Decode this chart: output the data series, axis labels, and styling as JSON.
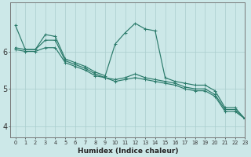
{
  "xlabel": "Humidex (Indice chaleur)",
  "ylabel": "",
  "bg_color": "#cce8e8",
  "line_color": "#2a7a6a",
  "grid_color": "#aacece",
  "axis_color": "#777777",
  "xlim": [
    -0.5,
    23
  ],
  "ylim": [
    3.7,
    7.3
  ],
  "yticks": [
    4,
    5,
    6
  ],
  "xtick_labels": [
    "0",
    "1",
    "2",
    "3",
    "4",
    "5",
    "6",
    "7",
    "8",
    "9",
    "10",
    "11",
    "12",
    "13",
    "14",
    "15",
    "16",
    "17",
    "18",
    "19",
    "20",
    "21",
    "22",
    "23"
  ],
  "lines": [
    {
      "x": [
        0,
        1,
        2,
        3,
        4,
        5,
        6,
        7,
        8,
        9,
        10,
        11,
        12,
        13,
        14,
        15,
        16,
        17,
        18,
        19,
        20,
        21,
        22,
        23
      ],
      "y": [
        6.7,
        6.05,
        6.05,
        6.45,
        6.4,
        5.8,
        5.7,
        5.6,
        5.45,
        5.35,
        6.2,
        6.5,
        6.75,
        6.6,
        6.55,
        5.3,
        5.2,
        5.15,
        5.1,
        5.1,
        4.95,
        4.5,
        4.5,
        4.2
      ]
    },
    {
      "x": [
        0,
        1,
        2,
        3,
        4,
        5,
        6,
        7,
        8,
        9,
        10,
        11,
        12,
        13,
        14,
        15,
        16,
        17,
        18,
        19,
        20,
        21,
        22,
        23
      ],
      "y": [
        6.1,
        6.05,
        6.05,
        6.3,
        6.3,
        5.75,
        5.65,
        5.55,
        5.4,
        5.3,
        5.25,
        5.3,
        5.4,
        5.3,
        5.25,
        5.2,
        5.15,
        5.05,
        5.0,
        5.0,
        4.85,
        4.45,
        4.45,
        4.2
      ]
    },
    {
      "x": [
        0,
        1,
        2,
        3,
        4,
        5,
        6,
        7,
        8,
        9,
        10,
        11,
        12,
        13,
        14,
        15,
        16,
        17,
        18,
        19,
        20,
        21,
        22,
        23
      ],
      "y": [
        6.05,
        6.0,
        6.0,
        6.1,
        6.1,
        5.7,
        5.6,
        5.5,
        5.35,
        5.3,
        5.2,
        5.25,
        5.3,
        5.25,
        5.2,
        5.15,
        5.1,
        5.0,
        4.95,
        4.95,
        4.8,
        4.4,
        4.4,
        4.2
      ]
    }
  ]
}
